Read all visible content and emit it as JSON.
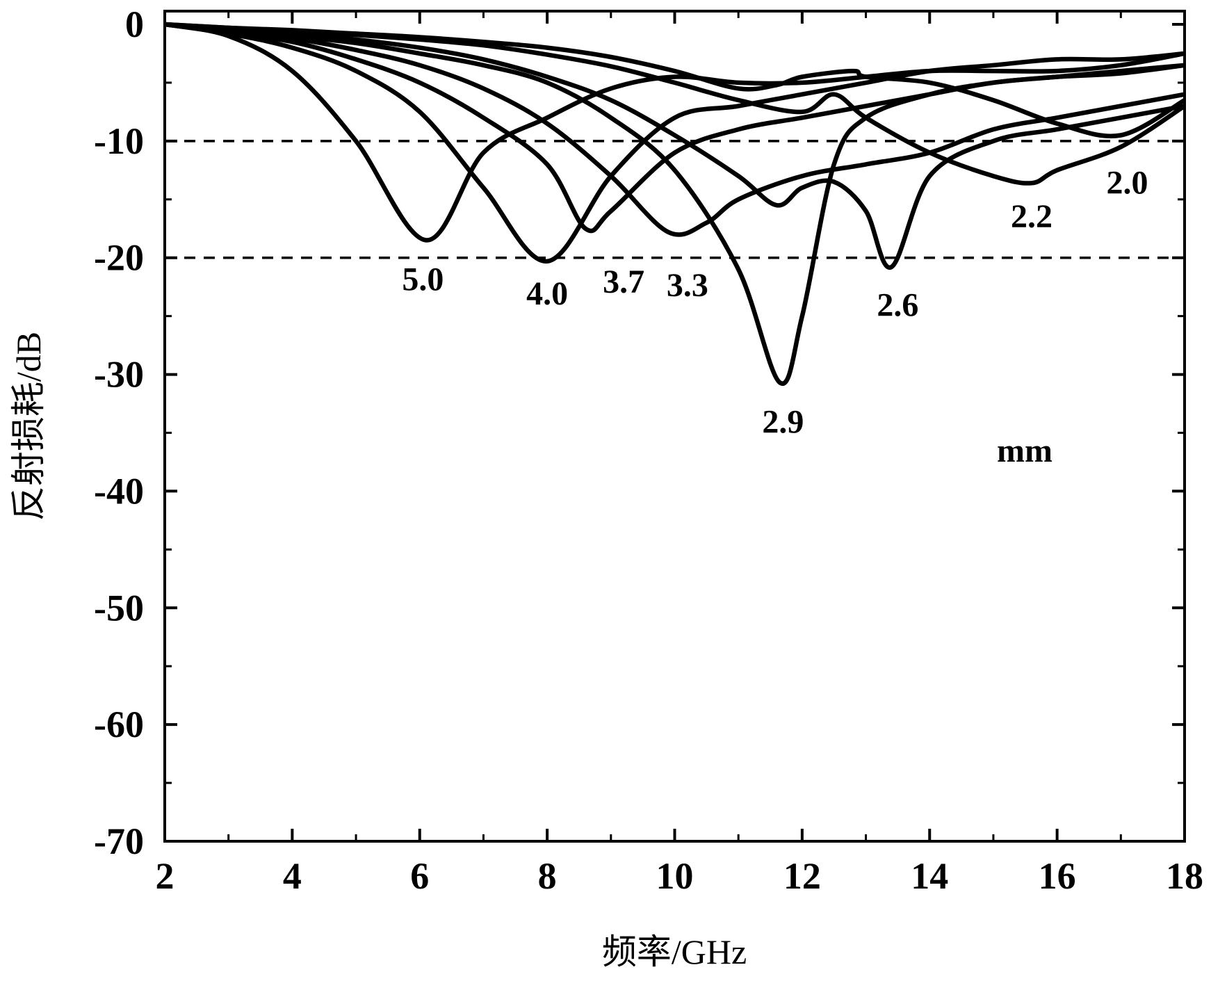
{
  "chart_data": {
    "type": "line",
    "xlabel": "频率/GHz",
    "ylabel": "反射损耗/dB",
    "xlim": [
      2,
      18
    ],
    "ylim": [
      -70,
      0
    ],
    "x_ticks": [
      "2",
      "4",
      "6",
      "8",
      "10",
      "12",
      "14",
      "16",
      "18"
    ],
    "y_ticks": [
      "0",
      "-10",
      "-20",
      "-30",
      "-40",
      "-50",
      "-60",
      "-70"
    ],
    "reference_lines": [
      -10,
      -20
    ],
    "unit_note": "mm",
    "grid": false,
    "line_color": "#000000",
    "series": [
      {
        "name": "5.0",
        "x": [
          2,
          3,
          4,
          5,
          6.1,
          7,
          8,
          9,
          10,
          11,
          12,
          13,
          14,
          15,
          16,
          17,
          18
        ],
        "y": [
          0,
          -1,
          -4,
          -10,
          -18.5,
          -11,
          -8,
          -5.5,
          -4.5,
          -5,
          -5,
          -4.5,
          -4,
          -4,
          -4,
          -3.5,
          -2.5
        ]
      },
      {
        "name": "4.0",
        "x": [
          2,
          3,
          4,
          5,
          6,
          7,
          8,
          9,
          10,
          11,
          12,
          13,
          14,
          15,
          16,
          17,
          18
        ],
        "y": [
          0,
          -0.8,
          -2,
          -4,
          -7.5,
          -14,
          -20.3,
          -13,
          -8,
          -7,
          -6,
          -5,
          -4,
          -3.5,
          -3,
          -3,
          -2.5
        ]
      },
      {
        "name": "3.7",
        "x": [
          2,
          3,
          4,
          5,
          6,
          7,
          8,
          8.6,
          9,
          10,
          11,
          12,
          13,
          14,
          15,
          16,
          17,
          18
        ],
        "y": [
          0,
          -0.7,
          -1.5,
          -3,
          -5,
          -8,
          -12,
          -17.5,
          -16,
          -11,
          -9,
          -8,
          -7,
          -6,
          -5,
          -4.5,
          -4,
          -3.5
        ]
      },
      {
        "name": "3.3",
        "x": [
          2,
          3,
          4,
          5,
          6,
          7,
          8,
          9,
          9.9,
          10.5,
          11,
          12,
          13,
          14,
          15,
          16,
          17,
          18
        ],
        "y": [
          0,
          -0.6,
          -1.2,
          -2.2,
          -3.5,
          -5.5,
          -8.5,
          -13,
          -17.8,
          -17,
          -15,
          -13,
          -12,
          -11,
          -9,
          -8,
          -7,
          -6
        ]
      },
      {
        "name": "2.9",
        "x": [
          2,
          3,
          4,
          5,
          6,
          7,
          8,
          9,
          10,
          11,
          11.65,
          12,
          12.5,
          13,
          14,
          15,
          16,
          17,
          18
        ],
        "y": [
          0,
          -0.5,
          -1,
          -1.6,
          -2.5,
          -3.5,
          -5,
          -8,
          -12.5,
          -21,
          -30.7,
          -25,
          -12,
          -8,
          -6,
          -5,
          -4.5,
          -4.2,
          -3.5
        ]
      },
      {
        "name": "2.6",
        "x": [
          2,
          3,
          4,
          5,
          6,
          7,
          8,
          9,
          10,
          11,
          11.6,
          12,
          12.5,
          13,
          13.4,
          14,
          15,
          16,
          17,
          18
        ],
        "y": [
          0,
          -0.4,
          -0.8,
          -1.3,
          -2,
          -3,
          -4.5,
          -6.5,
          -9.5,
          -13,
          -15.5,
          -14,
          -13.5,
          -16,
          -20.8,
          -13,
          -10,
          -9,
          -8,
          -7
        ]
      },
      {
        "name": "2.2",
        "x": [
          2,
          3,
          4,
          5,
          6,
          7,
          8,
          9,
          10,
          11,
          12,
          12.5,
          13,
          14,
          15,
          15.6,
          16,
          17,
          18
        ],
        "y": [
          0,
          -0.3,
          -0.6,
          -0.9,
          -1.3,
          -1.8,
          -2.6,
          -3.6,
          -5,
          -6.5,
          -7.5,
          -6,
          -8,
          -11,
          -13,
          -13.6,
          -12.5,
          -10.5,
          -7
        ]
      },
      {
        "name": "2.0",
        "x": [
          2,
          3,
          4,
          5,
          6,
          7,
          8,
          9,
          10,
          11,
          11.6,
          12,
          12.8,
          13,
          14,
          15,
          16,
          17,
          18
        ],
        "y": [
          0,
          -0.3,
          -0.5,
          -0.8,
          -1.1,
          -1.5,
          -2,
          -2.8,
          -4,
          -5.5,
          -5.2,
          -4.5,
          -4,
          -4.5,
          -5,
          -6.5,
          -8.5,
          -9.5,
          -6.5
        ]
      }
    ],
    "curve_labels": [
      {
        "text": "5.0",
        "x": 6.05,
        "y": -22.8
      },
      {
        "text": "4.0",
        "x": 8.0,
        "y": -24.0
      },
      {
        "text": "3.7",
        "x": 9.2,
        "y": -23.0
      },
      {
        "text": "3.3",
        "x": 10.2,
        "y": -23.3
      },
      {
        "text": "2.9",
        "x": 11.7,
        "y": -35.0
      },
      {
        "text": "2.6",
        "x": 13.5,
        "y": -25.0
      },
      {
        "text": "2.2",
        "x": 15.6,
        "y": -17.4
      },
      {
        "text": "2.0",
        "x": 17.1,
        "y": -14.5
      }
    ]
  }
}
